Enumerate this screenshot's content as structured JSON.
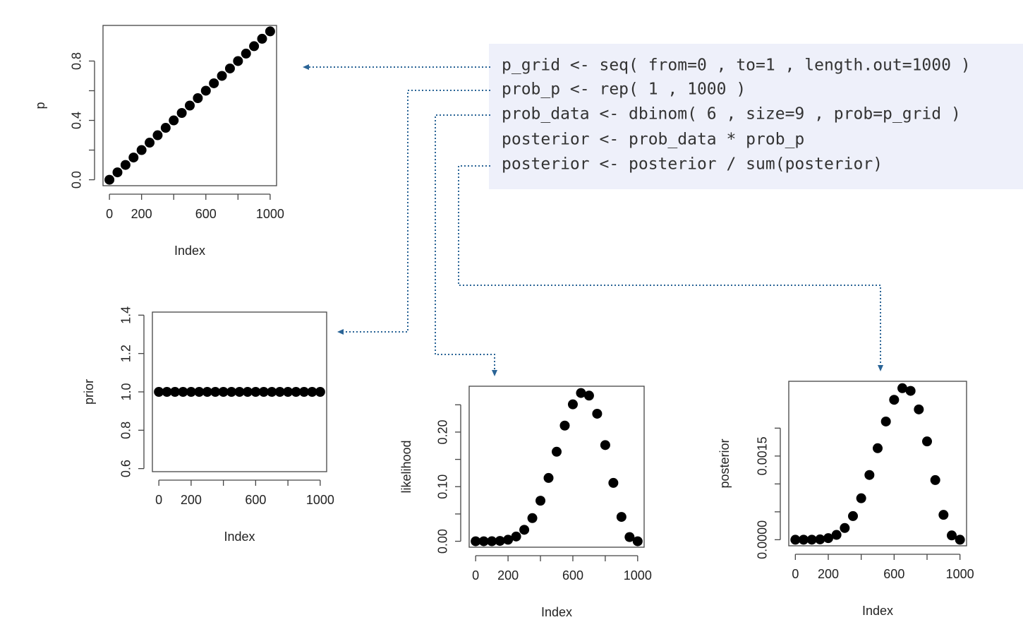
{
  "code": [
    "p_grid <- seq( from=0 , to=1 , length.out=1000 )",
    "prob_p <- rep( 1 , 1000 )",
    "prob_data <- dbinom( 6 , size=9 , prob=p_grid )",
    "posterior <- prob_data * prob_p",
    "posterior <- posterior / sum(posterior)"
  ],
  "chart_data": [
    {
      "type": "scatter",
      "x_label": "Index",
      "y_label": "p",
      "x": [
        0,
        50,
        100,
        150,
        200,
        250,
        300,
        350,
        400,
        450,
        500,
        550,
        600,
        650,
        700,
        750,
        800,
        850,
        900,
        950,
        1000
      ],
      "values": [
        0,
        0.05,
        0.1,
        0.15,
        0.2,
        0.25,
        0.3,
        0.35,
        0.4,
        0.45,
        0.5,
        0.55,
        0.6,
        0.65,
        0.7,
        0.75,
        0.8,
        0.85,
        0.9,
        0.95,
        1
      ],
      "color": "#000000",
      "xlim": [
        -40,
        1040
      ],
      "ylim": [
        -0.04,
        1.04
      ],
      "xticks": [
        0,
        200,
        600,
        1000
      ],
      "xminor": [
        400,
        800
      ],
      "yticks": [
        {
          "value": 0,
          "label": "0.0"
        },
        0.4,
        0.8
      ],
      "yminor": [
        0.2,
        0.6
      ]
    },
    {
      "type": "scatter",
      "x_label": "Index",
      "y_label": "prior",
      "x": [
        0,
        50,
        100,
        150,
        200,
        250,
        300,
        350,
        400,
        450,
        500,
        550,
        600,
        650,
        700,
        750,
        800,
        850,
        900,
        950,
        1000
      ],
      "values": [
        1,
        1,
        1,
        1,
        1,
        1,
        1,
        1,
        1,
        1,
        1,
        1,
        1,
        1,
        1,
        1,
        1,
        1,
        1,
        1,
        1
      ],
      "color": "#000000",
      "xlim": [
        -40,
        1040
      ],
      "ylim": [
        0.584,
        1.416
      ],
      "xticks": [
        0,
        200,
        600,
        1000
      ],
      "xminor": [
        400,
        800
      ],
      "yticks": [
        0.6,
        0.8,
        {
          "value": 1,
          "label": "1.0"
        },
        1.2,
        1.4
      ],
      "yminor": []
    },
    {
      "type": "scatter",
      "x_label": "Index",
      "y_label": "likelihood",
      "x": [
        0,
        50,
        100,
        150,
        200,
        250,
        300,
        350,
        400,
        450,
        500,
        550,
        600,
        650,
        700,
        750,
        800,
        850,
        900,
        950,
        1000
      ],
      "values": [
        0,
        1e-06,
        6e-05,
        0.0006,
        0.0028,
        0.0087,
        0.021,
        0.0424,
        0.0743,
        0.116,
        0.164,
        0.2119,
        0.2508,
        0.2716,
        0.2668,
        0.2336,
        0.1762,
        0.1069,
        0.0446,
        0.0077,
        0
      ],
      "color": "#000000",
      "xlim": [
        -40,
        1040
      ],
      "ylim": [
        -0.0109,
        0.284
      ],
      "xticks": [
        0,
        200,
        600,
        1000
      ],
      "xminor": [
        400,
        800
      ],
      "yticks": [
        {
          "value": 0,
          "label": "0.00"
        },
        {
          "value": 0.1,
          "label": "0.10"
        },
        {
          "value": 0.2,
          "label": "0.20"
        }
      ],
      "yminor": [
        0.05,
        0.15,
        0.25
      ]
    },
    {
      "type": "scatter",
      "x_label": "Index",
      "y_label": "posterior",
      "x": [
        0,
        50,
        100,
        150,
        200,
        250,
        300,
        350,
        400,
        450,
        500,
        550,
        600,
        650,
        700,
        750,
        800,
        850,
        900,
        950,
        1000
      ],
      "values": [
        0,
        1e-08,
        6e-07,
        6e-06,
        2.8e-05,
        8.7e-05,
        0.00021,
        0.000424,
        0.000743,
        0.00116,
        0.00164,
        0.002119,
        0.002508,
        0.002716,
        0.002668,
        0.002336,
        0.001762,
        0.001069,
        0.000446,
        7.7e-05,
        0
      ],
      "color": "#000000",
      "xlim": [
        -40,
        1040
      ],
      "ylim": [
        -0.000109,
        0.00284
      ],
      "xticks": [
        0,
        200,
        600,
        1000
      ],
      "xminor": [
        400,
        800
      ],
      "yticks": [
        {
          "value": 0,
          "label": "0.0000"
        },
        {
          "value": 0.0015,
          "label": "0.0015"
        }
      ],
      "yminor": [
        0.0005,
        0.001,
        0.002
      ]
    }
  ]
}
